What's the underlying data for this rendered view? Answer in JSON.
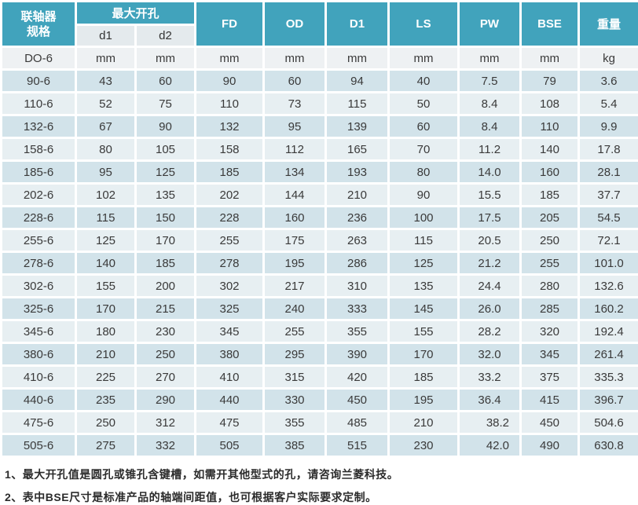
{
  "table": {
    "header": {
      "spec_line1": "联轴器",
      "spec_line2": "规格",
      "max_bore": "最大开孔",
      "sub_d1": "d1",
      "sub_d2": "d2",
      "cols": [
        "FD",
        "OD",
        "D1",
        "LS",
        "PW",
        "BSE",
        "重量"
      ]
    },
    "units_row": [
      "DO-6",
      "mm",
      "mm",
      "mm",
      "mm",
      "mm",
      "mm",
      "mm",
      "mm",
      "kg"
    ],
    "rows": [
      [
        "90-6",
        "43",
        "60",
        "90",
        "60",
        "94",
        "40",
        "7.5",
        "79",
        "3.6"
      ],
      [
        "110-6",
        "52",
        "75",
        "110",
        "73",
        "115",
        "50",
        "8.4",
        "108",
        "5.4"
      ],
      [
        "132-6",
        "67",
        "90",
        "132",
        "95",
        "139",
        "60",
        "8.4",
        "110",
        "9.9"
      ],
      [
        "158-6",
        "80",
        "105",
        "158",
        "112",
        "165",
        "70",
        "11.2",
        "140",
        "17.8"
      ],
      [
        "185-6",
        "95",
        "125",
        "185",
        "134",
        "193",
        "80",
        "14.0",
        "160",
        "28.1"
      ],
      [
        "202-6",
        "102",
        "135",
        "202",
        "144",
        "210",
        "90",
        "15.5",
        "185",
        "37.7"
      ],
      [
        "228-6",
        "115",
        "150",
        "228",
        "160",
        "236",
        "100",
        "17.5",
        "205",
        "54.5"
      ],
      [
        "255-6",
        "125",
        "170",
        "255",
        "175",
        "263",
        "115",
        "20.5",
        "250",
        "72.1"
      ],
      [
        "278-6",
        "140",
        "185",
        "278",
        "195",
        "286",
        "125",
        "21.2",
        "255",
        "101.0"
      ],
      [
        "302-6",
        "155",
        "200",
        "302",
        "217",
        "310",
        "135",
        "24.4",
        "280",
        "132.6"
      ],
      [
        "325-6",
        "170",
        "215",
        "325",
        "240",
        "333",
        "145",
        "26.0",
        "285",
        "160.2"
      ],
      [
        "345-6",
        "180",
        "230",
        "345",
        "255",
        "355",
        "155",
        "28.2",
        "320",
        "192.4"
      ],
      [
        "380-6",
        "210",
        "250",
        "380",
        "295",
        "390",
        "170",
        "32.0",
        "345",
        "261.4"
      ],
      [
        "410-6",
        "225",
        "270",
        "410",
        "315",
        "420",
        "185",
        "33.2",
        "375",
        "335.3"
      ],
      [
        "440-6",
        "235",
        "290",
        "440",
        "330",
        "450",
        "195",
        "36.4",
        "415",
        "396.7"
      ],
      [
        "475-6",
        "250",
        "312",
        "475",
        "355",
        "485",
        "210",
        "38.2",
        "450",
        "504.6"
      ],
      [
        "505-6",
        "275",
        "332",
        "505",
        "385",
        "515",
        "230",
        "42.0",
        "490",
        "630.8"
      ]
    ]
  },
  "footnotes": [
    "1、最大开孔值是圆孔或锥孔含键槽，如需开其他型式的孔，请咨询兰菱科技。",
    "2、表中BSE尺寸是标准产品的轴端间距值，也可根据客户实际要求定制。"
  ],
  "colors": {
    "header_teal": "#41A3BC",
    "subheader_bg": "#E4EAED",
    "units_row_bg": "#EEF1F3",
    "row_dark": "#D2E3EA",
    "row_light": "#E7EFF2"
  }
}
